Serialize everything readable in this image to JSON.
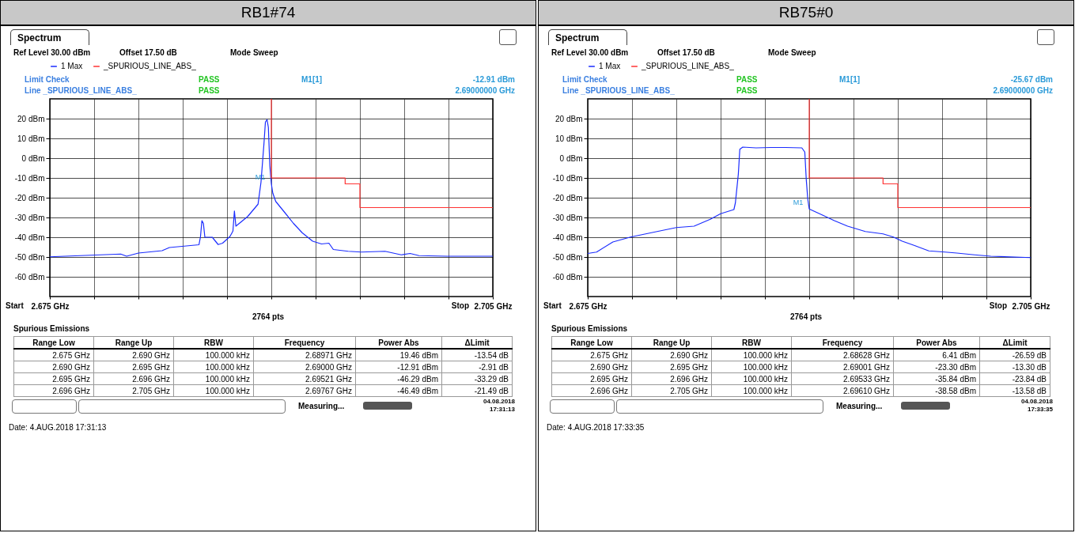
{
  "chart_data": [
    {
      "type": "line",
      "title": "RB1#74",
      "xlim": [
        2.675,
        2.705
      ],
      "ylim": [
        -70,
        30
      ],
      "xticks": [
        {
          "value": 2.675,
          "label": "2.675 GHz"
        },
        {
          "value": 2.678,
          "label": null
        },
        {
          "value": 2.681,
          "label": null
        },
        {
          "value": 2.684,
          "label": null
        },
        {
          "value": 2.687,
          "label": null
        },
        {
          "value": 2.69,
          "label": null
        },
        {
          "value": 2.693,
          "label": null
        },
        {
          "value": 2.696,
          "label": null
        },
        {
          "value": 2.699,
          "label": null
        },
        {
          "value": 2.702,
          "label": null
        },
        {
          "value": 2.705,
          "label": "2.705 GHz"
        }
      ],
      "yticks": [
        {
          "value": -60,
          "label": "-60 dBm"
        },
        {
          "value": -50,
          "label": "-50 dBm"
        },
        {
          "value": -40,
          "label": "-40 dBm"
        },
        {
          "value": -30,
          "label": "-30 dBm"
        },
        {
          "value": -20,
          "label": "-20 dBm"
        },
        {
          "value": -10,
          "label": "-10 dBm"
        },
        {
          "value": 0,
          "label": "0 dBm"
        },
        {
          "value": 10,
          "label": "10 dBm"
        },
        {
          "value": 20,
          "label": "20 dBm"
        }
      ],
      "grid": true,
      "legend": "top left",
      "series": [
        {
          "name": "1 Max",
          "color": "#1a2cff",
          "x": [
            2.675,
            2.6798,
            2.6802,
            2.681,
            2.6826,
            2.6831,
            2.6851,
            2.6852,
            2.6853,
            2.6854,
            2.6855,
            2.686,
            2.6864,
            2.6867,
            2.6872,
            2.6874,
            2.6875,
            2.6876,
            2.6884,
            2.6891,
            2.6893,
            2.6895,
            2.6896,
            2.68971,
            2.6898,
            2.6899,
            2.69,
            2.6901,
            2.6903,
            2.6909,
            2.6915,
            2.6921,
            2.6928,
            2.6934,
            2.6939,
            2.6942,
            2.6952,
            2.6961,
            2.6977,
            2.6988,
            2.6994,
            2.7,
            2.7019,
            2.705
          ],
          "values": [
            -49.9,
            -48.5,
            -49.6,
            -48,
            -46.8,
            -45.2,
            -43.8,
            -39.9,
            -31.6,
            -33,
            -40,
            -40,
            -43.7,
            -43,
            -39.6,
            -36.9,
            -26.7,
            -34.4,
            -29.5,
            -23.3,
            -12.2,
            7.2,
            18.3,
            19.46,
            15.6,
            -3.9,
            -12.91,
            -17.7,
            -21.9,
            -27.4,
            -33,
            -37.8,
            -42,
            -43.4,
            -43,
            -46.2,
            -47.1,
            -47.5,
            -47.1,
            -48.9,
            -48.2,
            -49.3,
            -49.6,
            -49.6
          ]
        },
        {
          "name": "_SPURIOUS_LINE_ABS_",
          "color": "#ff3333",
          "x": [
            2.69,
            2.69,
            2.695,
            2.695,
            2.696,
            2.696,
            2.705
          ],
          "values": [
            30,
            -10,
            -10,
            -13,
            -13,
            -25,
            -25
          ]
        }
      ],
      "annotations": [
        {
          "text": "M1",
          "x": 2.69,
          "y": -12.91
        },
        "Spectrum",
        "Ref Level 30.00 dBm",
        "Offset 17.50 dB",
        "Mode Sweep",
        "Limit Check",
        "PASS",
        "Line _SPURIOUS_LINE_ABS_",
        "PASS",
        "M1[1]",
        "-12.91 dBm",
        "2.69000000 GHz",
        "2764 pts",
        "Spurious Emissions",
        "Range Low",
        "Range Up",
        "RBW",
        "Frequency",
        "Power Abs",
        "ΔLimit",
        "2.675 GHz",
        "2.690 GHz",
        "100.000 kHz",
        "2.68971 GHz",
        "19.46 dBm",
        "-13.54 dB",
        "2.690 GHz",
        "2.695 GHz",
        "100.000 kHz",
        "2.69000 GHz",
        "-12.91 dBm",
        "-2.91 dB",
        "2.695 GHz",
        "2.696 GHz",
        "100.000 kHz",
        "2.69521 GHz",
        "-46.29 dBm",
        "-33.29 dB",
        "2.696 GHz",
        "2.705 GHz",
        "100.000 kHz",
        "2.69767 GHz",
        "-46.49 dBm",
        "-21.49 dB",
        "Measuring...",
        "04.08.2018",
        "17:31:13",
        "Date: 4.AUG.2018  17:31:13",
        "Start",
        "Stop"
      ]
    },
    {
      "type": "line",
      "title": "RB75#0",
      "xlim": [
        2.675,
        2.705
      ],
      "ylim": [
        -70,
        30
      ],
      "xticks": [
        {
          "value": 2.675,
          "label": "2.675 GHz"
        },
        {
          "value": 2.678,
          "label": null
        },
        {
          "value": 2.681,
          "label": null
        },
        {
          "value": 2.684,
          "label": null
        },
        {
          "value": 2.687,
          "label": null
        },
        {
          "value": 2.69,
          "label": null
        },
        {
          "value": 2.693,
          "label": null
        },
        {
          "value": 2.696,
          "label": null
        },
        {
          "value": 2.699,
          "label": null
        },
        {
          "value": 2.702,
          "label": null
        },
        {
          "value": 2.705,
          "label": "2.705 GHz"
        }
      ],
      "yticks": [
        {
          "value": -60,
          "label": "-60 dBm"
        },
        {
          "value": -50,
          "label": "-50 dBm"
        },
        {
          "value": -40,
          "label": "-40 dBm"
        },
        {
          "value": -30,
          "label": "-30 dBm"
        },
        {
          "value": -20,
          "label": "-20 dBm"
        },
        {
          "value": -10,
          "label": "-10 dBm"
        },
        {
          "value": 0,
          "label": "0 dBm"
        },
        {
          "value": 10,
          "label": "10 dBm"
        },
        {
          "value": 20,
          "label": "20 dBm"
        }
      ],
      "grid": true,
      "legend": "top left",
      "series": [
        {
          "name": "1 Max",
          "color": "#1a2cff",
          "x": [
            2.675,
            2.6756,
            2.6767,
            2.6779,
            2.6797,
            2.681,
            2.6822,
            2.6833,
            2.684,
            2.6849,
            2.685,
            2.6852,
            2.6853,
            2.6855,
            2.6864,
            2.6874,
            2.6884,
            2.6895,
            2.6897,
            2.6898,
            2.6899,
            2.69,
            2.6909,
            2.6917,
            2.6926,
            2.6938,
            2.695,
            2.6957,
            2.6963,
            2.6971,
            2.6981,
            2.6992,
            2.7,
            2.7012,
            2.7023,
            2.705
          ],
          "values": [
            -48.2,
            -47.5,
            -42.4,
            -39.9,
            -37.1,
            -35.1,
            -34.4,
            -30.9,
            -28.1,
            -26,
            -22.6,
            -8,
            4.5,
            5.6,
            5.2,
            5.4,
            5.4,
            5.2,
            3.1,
            -10.8,
            -20.5,
            -25.67,
            -28.8,
            -31.6,
            -34.4,
            -37.1,
            -38.3,
            -39.9,
            -42,
            -44.1,
            -46.9,
            -47.5,
            -48,
            -48.9,
            -49.6,
            -50.3
          ]
        },
        {
          "name": "_SPURIOUS_LINE_ABS_",
          "color": "#ff3333",
          "x": [
            2.69,
            2.69,
            2.695,
            2.695,
            2.696,
            2.696,
            2.705
          ],
          "values": [
            30,
            -10,
            -10,
            -13,
            -13,
            -25,
            -25
          ]
        }
      ],
      "annotations": [
        {
          "text": "M1",
          "x": 2.69,
          "y": -25.67
        },
        "Spectrum",
        "Ref Level 30.00 dBm",
        "Offset 17.50 dB",
        "Mode Sweep",
        "Limit Check",
        "PASS",
        "Line _SPURIOUS_LINE_ABS_",
        "PASS",
        "M1[1]",
        "-25.67 dBm",
        "2.69000000 GHz",
        "2764 pts",
        "Spurious Emissions",
        "Range Low",
        "Range Up",
        "RBW",
        "Frequency",
        "Power Abs",
        "ΔLimit",
        "2.675 GHz",
        "2.690 GHz",
        "100.000 kHz",
        "2.68628 GHz",
        "6.41 dBm",
        "-26.59 dB",
        "2.690 GHz",
        "2.695 GHz",
        "100.000 kHz",
        "2.69001 GHz",
        "-23.30 dBm",
        "-13.30 dB",
        "2.695 GHz",
        "2.696 GHz",
        "100.000 kHz",
        "2.69533 GHz",
        "-35.84 dBm",
        "-23.84 dB",
        "2.696 GHz",
        "2.705 GHz",
        "100.000 kHz",
        "2.69610 GHz",
        "-38.58 dBm",
        "-13.58 dB",
        "Measuring...",
        "04.08.2018",
        "17:33:35",
        "Date: 4.AUG.2018  17:33:35",
        "Start",
        "Stop"
      ]
    }
  ]
}
